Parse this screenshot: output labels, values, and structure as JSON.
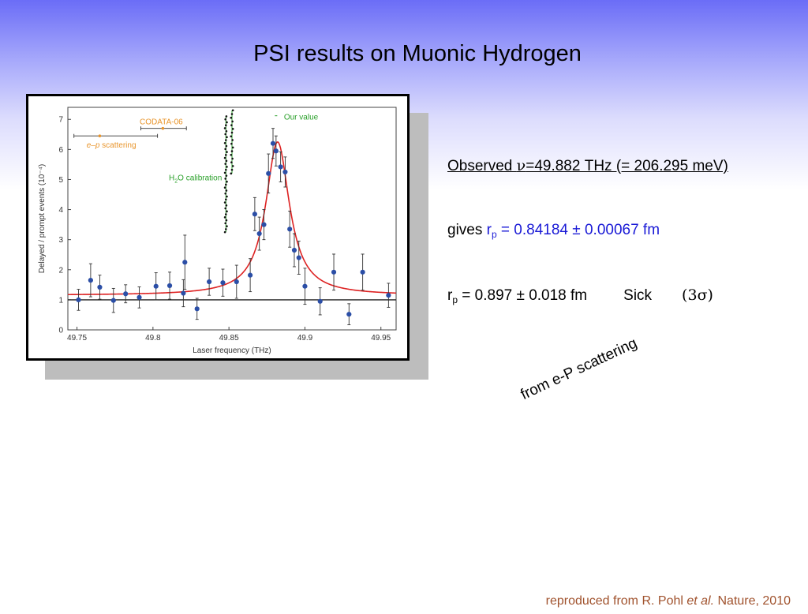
{
  "slide": {
    "title": "PSI results on Muonic Hydrogen",
    "observed_prefix": "Observed ",
    "observed_nu": "ν",
    "observed_suffix": "=49.882 THz (= 206.295 meV)",
    "gives_prefix": "gives ",
    "rp_r": "r",
    "rp_sub": "p",
    "gives_value": " = 0.84184 ± 0.00067 fm",
    "sick_r": "r",
    "sick_sub": "p",
    "sick_value": " = 0.897 ± 0.018 fm",
    "sick_name": "Sick",
    "sick_sigma_open": "(3",
    "sick_sigma": "σ",
    "sick_sigma_close": ")",
    "rotated_note": "from e-P scattering",
    "footer_prefix": "reproduced from R. Pohl ",
    "footer_italic": "et al.",
    "footer_suffix": " Nature, 2010"
  },
  "colors": {
    "fit_line": "#dd2222",
    "data_point": "#2b4ea6",
    "codata": "#e8942a",
    "our_value": "#2aa02a",
    "h2o": "#2aa02a",
    "blue_text": "#1a1ad6"
  },
  "chart_data": {
    "type": "scatter",
    "xlabel": "Laser frequency (THz)",
    "ylabel": "Delayed / prompt events (10⁻⁴)",
    "xlim": [
      49.744,
      49.96
    ],
    "ylim": [
      0,
      7.4
    ],
    "xticks": [
      "49.75",
      "49.8",
      "49.85",
      "49.9",
      "49.95"
    ],
    "xtick_values": [
      49.75,
      49.8,
      49.85,
      49.9,
      49.95
    ],
    "yticks": [
      "0",
      "1",
      "2",
      "3",
      "4",
      "5",
      "6",
      "7"
    ],
    "baseline": 1.15,
    "fit": {
      "center": 49.882,
      "height": 5.1,
      "hwhm": 0.0095
    },
    "points": [
      {
        "x": 49.751,
        "y": 1.0,
        "err": 0.35
      },
      {
        "x": 49.759,
        "y": 1.65,
        "err": 0.55
      },
      {
        "x": 49.765,
        "y": 1.42,
        "err": 0.4
      },
      {
        "x": 49.774,
        "y": 0.98,
        "err": 0.4
      },
      {
        "x": 49.782,
        "y": 1.2,
        "err": 0.3
      },
      {
        "x": 49.791,
        "y": 1.08,
        "err": 0.35
      },
      {
        "x": 49.802,
        "y": 1.45,
        "err": 0.45
      },
      {
        "x": 49.811,
        "y": 1.47,
        "err": 0.45
      },
      {
        "x": 49.82,
        "y": 1.22,
        "err": 0.45
      },
      {
        "x": 49.821,
        "y": 2.25,
        "err": 0.9
      },
      {
        "x": 49.829,
        "y": 0.7,
        "err": 0.35
      },
      {
        "x": 49.837,
        "y": 1.6,
        "err": 0.45
      },
      {
        "x": 49.846,
        "y": 1.57,
        "err": 0.45
      },
      {
        "x": 49.855,
        "y": 1.6,
        "err": 0.55
      },
      {
        "x": 49.864,
        "y": 1.82,
        "err": 0.55
      },
      {
        "x": 49.867,
        "y": 3.85,
        "err": 0.55
      },
      {
        "x": 49.87,
        "y": 3.2,
        "err": 0.55
      },
      {
        "x": 49.873,
        "y": 3.5,
        "err": 0.5
      },
      {
        "x": 49.876,
        "y": 5.2,
        "err": 0.65
      },
      {
        "x": 49.879,
        "y": 6.2,
        "err": 0.5
      },
      {
        "x": 49.881,
        "y": 5.95,
        "err": 0.5
      },
      {
        "x": 49.884,
        "y": 5.42,
        "err": 0.5
      },
      {
        "x": 49.887,
        "y": 5.25,
        "err": 0.5
      },
      {
        "x": 49.89,
        "y": 3.35,
        "err": 0.6
      },
      {
        "x": 49.893,
        "y": 2.65,
        "err": 0.55
      },
      {
        "x": 49.896,
        "y": 2.4,
        "err": 0.55
      },
      {
        "x": 49.9,
        "y": 1.45,
        "err": 0.6
      },
      {
        "x": 49.91,
        "y": 0.95,
        "err": 0.45
      },
      {
        "x": 49.919,
        "y": 1.92,
        "err": 0.6
      },
      {
        "x": 49.929,
        "y": 0.52,
        "err": 0.35
      },
      {
        "x": 49.938,
        "y": 1.92,
        "err": 0.6
      },
      {
        "x": 49.955,
        "y": 1.15,
        "err": 0.4
      }
    ],
    "annotations": {
      "codata_label": "CODATA-06",
      "codata": {
        "center": 49.8065,
        "low": 49.792,
        "high": 49.822,
        "y": 6.7
      },
      "ep_label_italic": "e–p",
      "ep_label_rest": " scattering",
      "ep": {
        "center": 49.765,
        "low": 49.748,
        "high": 49.803,
        "y": 6.45
      },
      "our_value_label": "Our value",
      "our_value": {
        "center": 49.881,
        "y": 7.12
      },
      "h2o_label_prefix": "H",
      "h2o_label_sub": "2",
      "h2o_label_suffix": "O calibration",
      "h2o_left": {
        "x": 49.848,
        "ytop": 7.1,
        "ybottom": 3.25
      },
      "h2o_right": {
        "x": 49.852,
        "ytop": 7.3,
        "ybottom": 5.2
      }
    }
  }
}
